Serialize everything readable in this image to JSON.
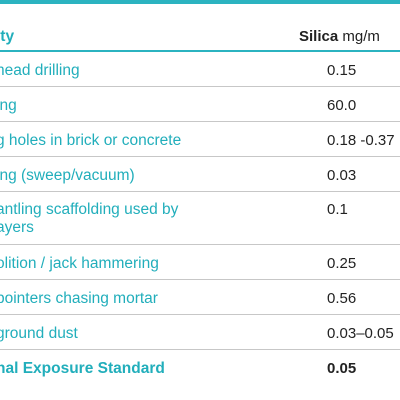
{
  "header": {
    "activity_label": "ity",
    "silica_label": "Silica",
    "unit_label": "mg/m"
  },
  "rows": [
    {
      "activity": "head drilling",
      "value": "0.15"
    },
    {
      "activity": "ing",
      "value": "60.0"
    },
    {
      "activity": "g holes in brick or concrete",
      "value": "0.18 -0.37"
    },
    {
      "activity": "ing (sweep/vacuum)",
      "value": "0.03"
    },
    {
      "activity": "antling scaffolding used by",
      "activity_line2": "ayers",
      "value": "0.1"
    },
    {
      "activity": "olition / jack hammering",
      "value": "0.25"
    },
    {
      "activity": "pointers chasing mortar",
      "value": "0.56"
    },
    {
      "activity": "ground dust",
      "value": "0.03–0.05"
    },
    {
      "activity": "nal Exposure Standard",
      "value": "0.05"
    }
  ],
  "colors": {
    "accent": "#2bb3c0",
    "text": "#222222",
    "rule": "#c7c7c7"
  }
}
